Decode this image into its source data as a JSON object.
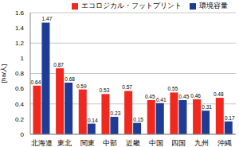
{
  "chart_data": {
    "type": "bar",
    "ylabel": "[ha/人]",
    "categories": [
      "北海道",
      "東北",
      "関東",
      "中部",
      "近畿",
      "中国",
      "四国",
      "九州",
      "沖縄"
    ],
    "series": [
      {
        "name": "エコロジカル・フットプリント",
        "color": "#f0281e",
        "values": [
          0.64,
          0.87,
          0.59,
          0.53,
          0.57,
          0.45,
          0.55,
          0.46,
          0.48
        ]
      },
      {
        "name": "環境容量",
        "color": "#1e3c96",
        "values": [
          1.47,
          0.68,
          0.14,
          0.23,
          0.15,
          0.41,
          0.45,
          0.31,
          0.17
        ]
      }
    ],
    "ylim": [
      0,
      1.6
    ],
    "yticks": [
      0,
      0.2,
      0.4,
      0.6,
      0.8,
      1,
      1.2,
      1.4,
      1.6
    ],
    "grid": true,
    "legend": "top",
    "data_labels": true
  }
}
